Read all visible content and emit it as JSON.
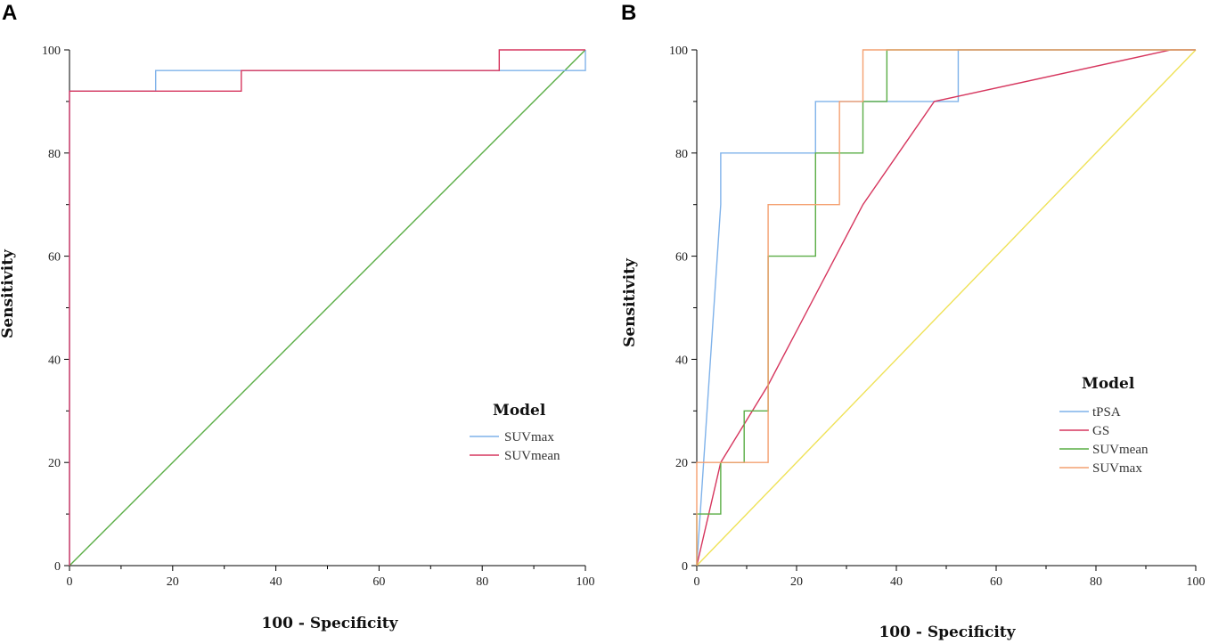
{
  "chart_data": [
    {
      "panel_label": "A",
      "type": "line",
      "xlabel": "100 - Specificity",
      "ylabel": "Sensitivity",
      "xlim": [
        0,
        100
      ],
      "ylim": [
        0,
        100
      ],
      "xticks": [
        0,
        20,
        40,
        60,
        80,
        100
      ],
      "yticks": [
        0,
        20,
        40,
        60,
        80,
        100
      ],
      "legend_title": "Model",
      "legend_position": "lower-right",
      "series": [
        {
          "name": "reference",
          "color": "#5aad45",
          "in_legend": false,
          "points": [
            [
              0,
              0
            ],
            [
              100,
              100
            ]
          ]
        },
        {
          "name": "SUVmax",
          "color": "#7fb2ea",
          "in_legend": true,
          "points": [
            [
              0,
              0
            ],
            [
              0,
              92
            ],
            [
              16.7,
              92
            ],
            [
              16.7,
              96
            ],
            [
              83.3,
              96
            ],
            [
              100,
              96
            ],
            [
              100,
              100
            ]
          ]
        },
        {
          "name": "SUVmean",
          "color": "#d6365e",
          "in_legend": true,
          "points": [
            [
              0,
              0
            ],
            [
              0,
              92
            ],
            [
              33.3,
              92
            ],
            [
              33.3,
              96
            ],
            [
              83.3,
              96
            ],
            [
              83.3,
              100
            ],
            [
              100,
              100
            ]
          ]
        }
      ]
    },
    {
      "panel_label": "B",
      "type": "line",
      "xlabel": "100 - Specificity",
      "ylabel": "Sensitivity",
      "xlim": [
        0,
        100
      ],
      "ylim": [
        0,
        100
      ],
      "xticks": [
        0,
        20,
        40,
        60,
        80,
        100
      ],
      "yticks": [
        0,
        20,
        40,
        60,
        80,
        100
      ],
      "legend_title": "Model",
      "legend_position": "lower-right",
      "series": [
        {
          "name": "reference",
          "color": "#efe257",
          "in_legend": false,
          "points": [
            [
              0,
              0
            ],
            [
              100,
              100
            ]
          ]
        },
        {
          "name": "tPSA",
          "color": "#7fb2ea",
          "in_legend": true,
          "points": [
            [
              0,
              0
            ],
            [
              4.8,
              70
            ],
            [
              4.8,
              80
            ],
            [
              23.8,
              80
            ],
            [
              23.8,
              90
            ],
            [
              52.4,
              90
            ],
            [
              52.4,
              100
            ],
            [
              100,
              100
            ]
          ]
        },
        {
          "name": "GS",
          "color": "#d6365e",
          "in_legend": true,
          "points": [
            [
              0,
              0
            ],
            [
              4.8,
              20
            ],
            [
              14.3,
              35
            ],
            [
              33.3,
              70
            ],
            [
              47.6,
              90
            ],
            [
              52.4,
              91
            ],
            [
              95,
              100
            ],
            [
              100,
              100
            ]
          ]
        },
        {
          "name": "SUVmean",
          "color": "#5aad45",
          "in_legend": true,
          "points": [
            [
              0,
              0
            ],
            [
              0,
              10
            ],
            [
              4.8,
              10
            ],
            [
              4.8,
              20
            ],
            [
              9.5,
              20
            ],
            [
              9.5,
              30
            ],
            [
              14.3,
              30
            ],
            [
              14.3,
              60
            ],
            [
              23.8,
              60
            ],
            [
              23.8,
              80
            ],
            [
              33.3,
              80
            ],
            [
              33.3,
              90
            ],
            [
              38.1,
              90
            ],
            [
              38.1,
              100
            ],
            [
              100,
              100
            ]
          ]
        },
        {
          "name": "SUVmax",
          "color": "#f4a070",
          "in_legend": true,
          "points": [
            [
              0,
              0
            ],
            [
              0,
              20
            ],
            [
              14.3,
              20
            ],
            [
              14.3,
              70
            ],
            [
              28.6,
              70
            ],
            [
              28.6,
              90
            ],
            [
              33.3,
              90
            ],
            [
              33.3,
              100
            ],
            [
              100,
              100
            ]
          ]
        }
      ]
    }
  ]
}
